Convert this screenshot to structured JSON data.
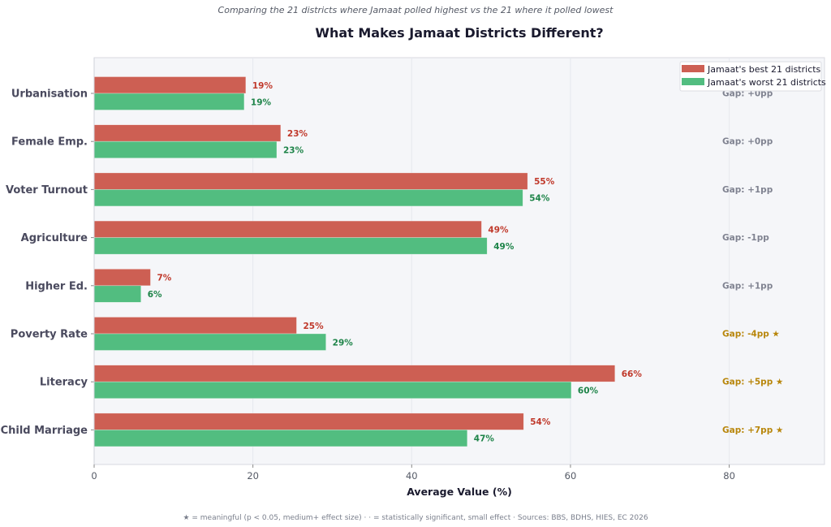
{
  "chart_data": {
    "type": "bar",
    "orientation": "horizontal",
    "subtitle": "Comparing the 21 districts where Jamaat polled highest vs the 21 where it polled lowest",
    "title": "What Makes Jamaat Districts Different?",
    "xlabel": "Average Value (%)",
    "ylabel": "",
    "xlim": [
      0,
      92
    ],
    "xticks": [
      0,
      20,
      40,
      60,
      80
    ],
    "grid": true,
    "legend_position": "top-right",
    "categories": [
      "Urbanisation",
      "Female Emp.",
      "Voter Turnout",
      "Agriculture",
      "Higher Ed.",
      "Poverty Rate",
      "Literacy",
      "Child Marriage"
    ],
    "series": [
      {
        "name": "Jamaat's best 21 districts",
        "color": "#cd5f53",
        "label_color": "#c0392b",
        "values": [
          19.1,
          23.5,
          54.6,
          48.8,
          7.1,
          25.5,
          65.6,
          54.1
        ],
        "labels": [
          "19%",
          "23%",
          "55%",
          "49%",
          "7%",
          "25%",
          "66%",
          "54%"
        ]
      },
      {
        "name": "Jamaat's worst 21 districts",
        "color": "#52bd80",
        "label_color": "#1e8449",
        "values": [
          18.9,
          23.0,
          54.0,
          49.5,
          5.9,
          29.2,
          60.1,
          47.0
        ],
        "labels": [
          "19%",
          "23%",
          "54%",
          "49%",
          "6%",
          "29%",
          "60%",
          "47%"
        ]
      }
    ],
    "gaps": [
      {
        "label": "Gap: +0pp",
        "meaningful": false
      },
      {
        "label": "Gap: +0pp",
        "meaningful": false
      },
      {
        "label": "Gap: +1pp",
        "meaningful": false
      },
      {
        "label": "Gap: -1pp",
        "meaningful": false
      },
      {
        "label": "Gap: +1pp",
        "meaningful": false
      },
      {
        "label": "Gap: -4pp ★",
        "meaningful": true
      },
      {
        "label": "Gap: +5pp ★",
        "meaningful": true
      },
      {
        "label": "Gap: +7pp ★",
        "meaningful": true
      }
    ],
    "gap_colors": {
      "normal": "#7f8290",
      "meaningful": "#b8860b"
    },
    "footnote": "★ = meaningful (p < 0.05, medium+ effect size)  ·  · = statistically significant, small effect  ·  Sources: BBS, BDHS, HIES, EC 2026"
  }
}
